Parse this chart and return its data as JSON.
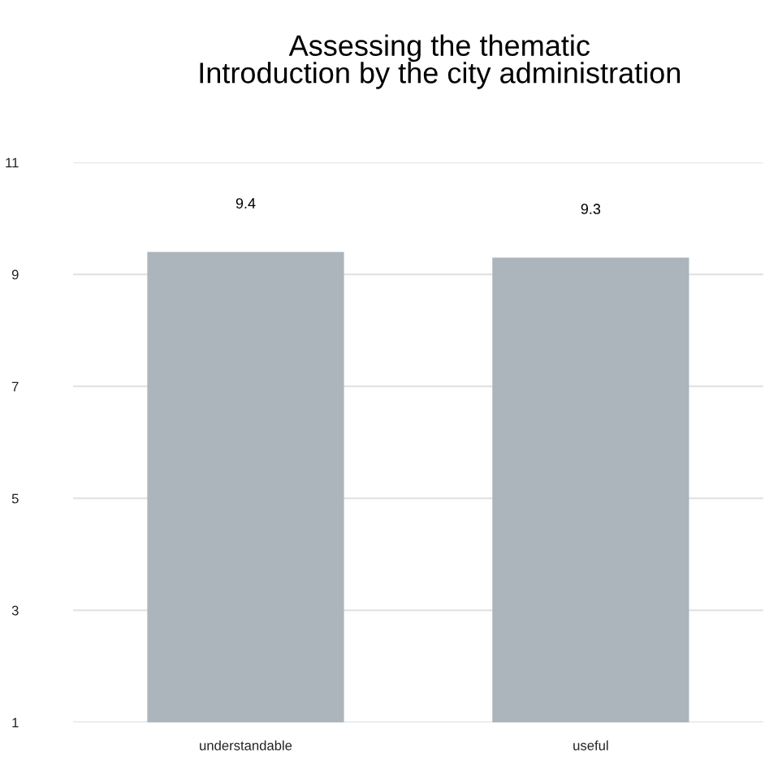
{
  "chart_data": {
    "type": "bar",
    "title": "Assessing the thematic\nIntroduction by the city administration",
    "categories": [
      "understandable",
      "useful"
    ],
    "values": [
      9.4,
      9.3
    ],
    "color": "#abb5bb",
    "ylim": [
      1,
      11
    ],
    "yticks": [
      1,
      3,
      5,
      7,
      9,
      11
    ],
    "grid": "y",
    "data_labels": true
  }
}
